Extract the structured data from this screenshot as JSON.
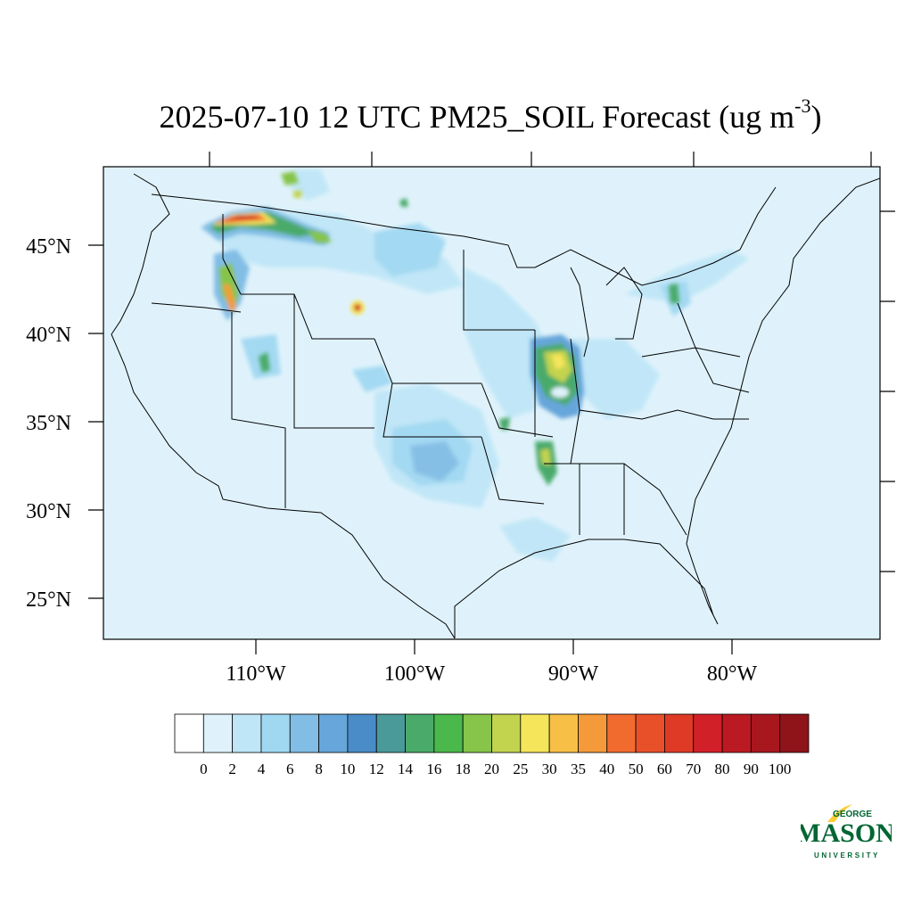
{
  "title": {
    "main": "2025-07-10 12 UTC PM25_SOIL Forecast (ug m",
    "sup": "-3",
    "close": ")"
  },
  "lat_labels": [
    "45°N",
    "40°N",
    "35°N",
    "30°N",
    "25°N"
  ],
  "lon_labels": [
    "110°W",
    "100°W",
    "90°W",
    "80°W"
  ],
  "colorbar": {
    "labels": [
      "0",
      "2",
      "4",
      "6",
      "8",
      "10",
      "12",
      "14",
      "16",
      "18",
      "20",
      "25",
      "30",
      "35",
      "40",
      "50",
      "60",
      "70",
      "80",
      "90",
      "100"
    ],
    "colors": [
      "#ffffff",
      "#dff2fb",
      "#bfe6f7",
      "#a0d8f2",
      "#82bde5",
      "#66a6da",
      "#4a8cc8",
      "#4a9a9a",
      "#4aaa6a",
      "#4ab84a",
      "#86c44a",
      "#c2d34e",
      "#f5e55a",
      "#f7bf45",
      "#f59a3a",
      "#f26b2e",
      "#e8502a",
      "#de3a26",
      "#d22028",
      "#bb1a22",
      "#a8161e",
      "#8e141a"
    ]
  },
  "logo": {
    "line1": "GEORGE",
    "line2": "MASON",
    "line3": "UNIVERSITY",
    "color": "#006633",
    "accent": "#ffcc33"
  }
}
